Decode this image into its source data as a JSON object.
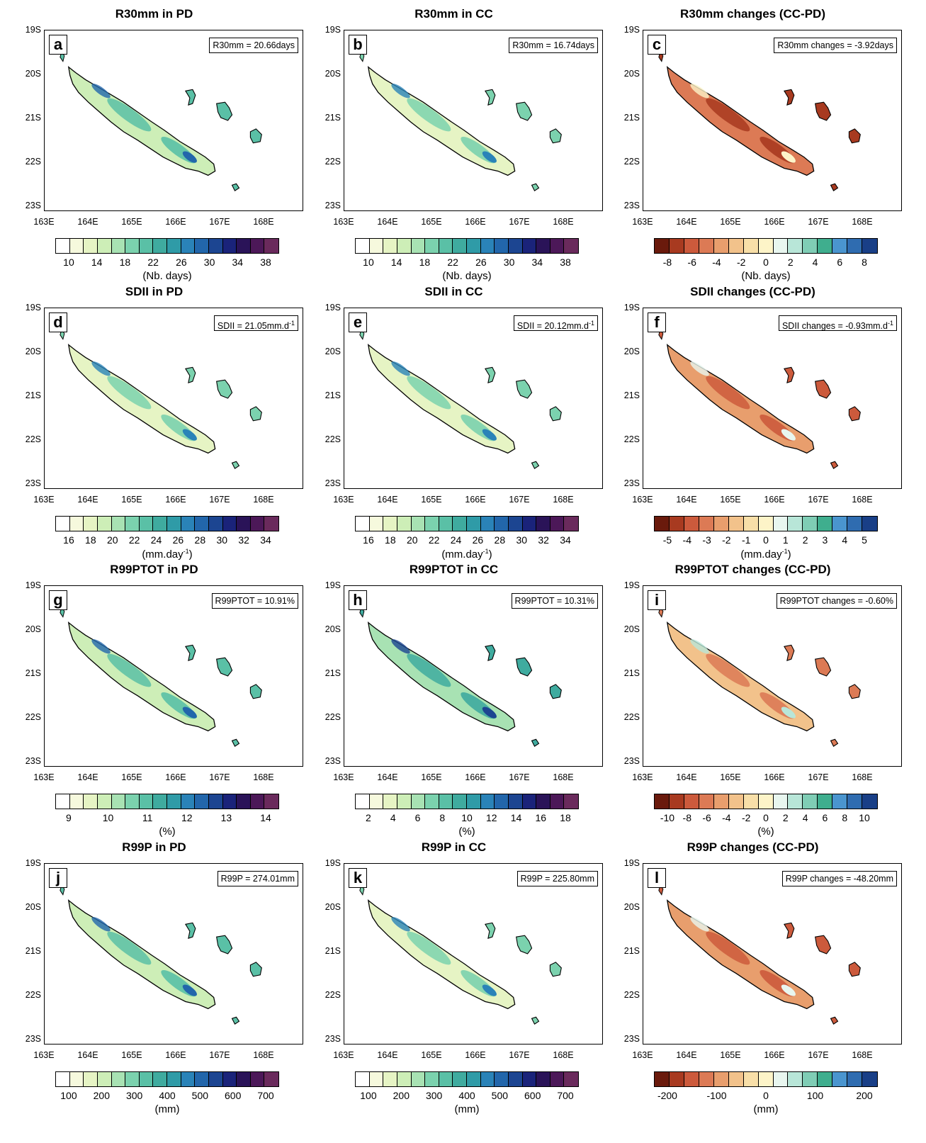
{
  "axes": {
    "lat_ticks": [
      "19S",
      "20S",
      "21S",
      "22S",
      "23S"
    ],
    "lon_ticks": [
      "163E",
      "164E",
      "165E",
      "166E",
      "167E",
      "168E"
    ]
  },
  "palettes": {
    "sequential": [
      "#ffffff",
      "#f6f9dd",
      "#e6f4c4",
      "#cdeeb7",
      "#a8e2b3",
      "#7bd2ae",
      "#5ac0a6",
      "#3fab9f",
      "#2f9ba7",
      "#2a83b8",
      "#2266ab",
      "#1c4591",
      "#1a237a",
      "#2a1358",
      "#4c1858",
      "#6a2a5c"
    ],
    "diverging": [
      "#6a1a0c",
      "#a83a20",
      "#cc5a3c",
      "#dc7a55",
      "#e89e6d",
      "#f2c28b",
      "#f8dfa8",
      "#fdf4c8",
      "#e8f6ef",
      "#b8e6d8",
      "#7fcdb5",
      "#3fae8e",
      "#4a95cf",
      "#2f6cb0",
      "#193f87"
    ]
  },
  "panels": [
    {
      "title": "R30mm in PD",
      "letter": "a",
      "stat_text": "R30mm = 20.66days",
      "stat_sup": "",
      "palette": "sequential",
      "cbar_labels": [
        "10",
        "14",
        "18",
        "22",
        "26",
        "30",
        "34",
        "38"
      ],
      "unit": "(Nb. days)",
      "unit_sup": "",
      "unit_tail": "",
      "map_level": 0.55
    },
    {
      "title": "R30mm in CC",
      "letter": "b",
      "stat_text": "R30mm = 16.74days",
      "stat_sup": "",
      "palette": "sequential",
      "cbar_labels": [
        "10",
        "14",
        "18",
        "22",
        "26",
        "30",
        "34",
        "38"
      ],
      "unit": "(Nb. days)",
      "unit_sup": "",
      "unit_tail": "",
      "map_level": 0.35
    },
    {
      "title": "R30mm changes (CC-PD)",
      "letter": "c",
      "stat_text": "R30mm changes = -3.92days",
      "stat_sup": "",
      "palette": "diverging",
      "cbar_labels": [
        "-8",
        "-6",
        "-4",
        "-2",
        "0",
        "2",
        "4",
        "6",
        "8"
      ],
      "unit": "(Nb. days)",
      "unit_sup": "",
      "unit_tail": "",
      "map_level": 0.2
    },
    {
      "title": "SDII in PD",
      "letter": "d",
      "stat_text": "SDII = 21.05mm.d",
      "stat_sup": "-1",
      "palette": "sequential",
      "cbar_labels": [
        "16",
        "18",
        "20",
        "22",
        "24",
        "26",
        "28",
        "30",
        "32",
        "34"
      ],
      "unit": "(mm.day",
      "unit_sup": "-1",
      "unit_tail": ")",
      "map_level": 0.4
    },
    {
      "title": "SDII in CC",
      "letter": "e",
      "stat_text": "SDII = 20.12mm.d",
      "stat_sup": "-1",
      "palette": "sequential",
      "cbar_labels": [
        "16",
        "18",
        "20",
        "22",
        "24",
        "26",
        "28",
        "30",
        "32",
        "34"
      ],
      "unit": "(mm.day",
      "unit_sup": "-1",
      "unit_tail": ")",
      "map_level": 0.38
    },
    {
      "title": "SDII changes (CC-PD)",
      "letter": "f",
      "stat_text": "SDII changes = -0.93mm.d",
      "stat_sup": "-1",
      "palette": "diverging",
      "cbar_labels": [
        "-5",
        "-4",
        "-3",
        "-2",
        "-1",
        "0",
        "1",
        "2",
        "3",
        "4",
        "5"
      ],
      "unit": "(mm.day",
      "unit_sup": "-1",
      "unit_tail": ")",
      "map_level": 0.35
    },
    {
      "title": "R99PTOT in PD",
      "letter": "g",
      "stat_text": "R99PTOT = 10.91%",
      "stat_sup": "",
      "palette": "sequential",
      "cbar_labels": [
        "9",
        "10",
        "11",
        "12",
        "13",
        "14"
      ],
      "unit": "(%)",
      "unit_sup": "",
      "unit_tail": "",
      "map_level": 0.5
    },
    {
      "title": "R99PTOT in CC",
      "letter": "h",
      "stat_text": "R99PTOT = 10.31%",
      "stat_sup": "",
      "palette": "sequential",
      "cbar_labels": [
        "2",
        "4",
        "6",
        "8",
        "10",
        "12",
        "14",
        "16",
        "18"
      ],
      "unit": "(%)",
      "unit_sup": "",
      "unit_tail": "",
      "map_level": 0.7
    },
    {
      "title": "R99PTOT changes (CC-PD)",
      "letter": "i",
      "stat_text": "R99PTOT changes = -0.60%",
      "stat_sup": "",
      "palette": "diverging",
      "cbar_labels": [
        "-10",
        "-8",
        "-6",
        "-4",
        "-2",
        "0",
        "2",
        "4",
        "6",
        "8",
        "10"
      ],
      "unit": "(%)",
      "unit_sup": "",
      "unit_tail": "",
      "map_level": 0.45
    },
    {
      "title": "R99P in PD",
      "letter": "j",
      "stat_text": "R99P = 274.01mm",
      "stat_sup": "",
      "palette": "sequential",
      "cbar_labels": [
        "100",
        "200",
        "300",
        "400",
        "500",
        "600",
        "700"
      ],
      "unit": "(mm)",
      "unit_sup": "",
      "unit_tail": "",
      "map_level": 0.45
    },
    {
      "title": "R99P in CC",
      "letter": "k",
      "stat_text": "R99P = 225.80mm",
      "stat_sup": "",
      "palette": "sequential",
      "cbar_labels": [
        "100",
        "200",
        "300",
        "400",
        "500",
        "600",
        "700"
      ],
      "unit": "(mm)",
      "unit_sup": "",
      "unit_tail": "",
      "map_level": 0.4
    },
    {
      "title": "R99P changes (CC-PD)",
      "letter": "l",
      "stat_text": "R99P changes = -48.20mm",
      "stat_sup": "",
      "palette": "diverging",
      "cbar_labels": [
        "-200",
        "-100",
        "0",
        "100",
        "200"
      ],
      "unit": "(mm)",
      "unit_sup": "",
      "unit_tail": "",
      "map_level": 0.3
    }
  ]
}
